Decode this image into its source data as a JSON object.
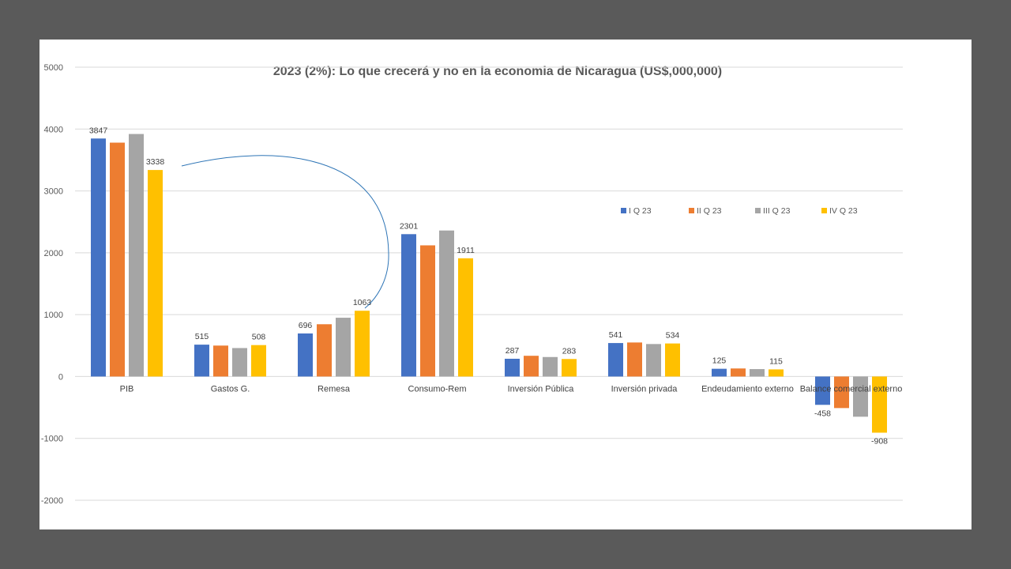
{
  "chart_data": {
    "type": "bar",
    "title": "2023 (2%): Lo que crecerá y  no en la economia de Nicaragua (US$,000,000)",
    "xlabel": "",
    "ylabel": "",
    "ylim": [
      -2000,
      5000
    ],
    "yticks": [
      5000,
      4000,
      3000,
      2000,
      1000,
      0,
      -1000,
      -2000
    ],
    "grid": true,
    "legend_position": "right",
    "categories": [
      "PIB",
      "Gastos G.",
      "Remesa",
      "Consumo-Rem",
      "Inversión Pública",
      "Inversión privada",
      "Endeudamiento externo",
      "Balance comercial externo"
    ],
    "series": [
      {
        "name": "I Q 23",
        "color": "#4472C4",
        "values": [
          3847,
          515,
          696,
          2301,
          287,
          541,
          125,
          -458
        ]
      },
      {
        "name": "II Q 23",
        "color": "#ED7D31",
        "values": [
          3780,
          500,
          845,
          2120,
          335,
          550,
          130,
          -510
        ]
      },
      {
        "name": "III Q 23",
        "color": "#A5A5A5",
        "values": [
          3920,
          460,
          950,
          2360,
          315,
          525,
          120,
          -650
        ]
      },
      {
        "name": "IV Q 23",
        "color": "#FFC000",
        "values": [
          3338,
          508,
          1063,
          1911,
          283,
          534,
          115,
          -908
        ]
      }
    ],
    "data_labels": [
      {
        "series": 0,
        "category": 0,
        "text": "3847"
      },
      {
        "series": 3,
        "category": 0,
        "text": "3338"
      },
      {
        "series": 0,
        "category": 1,
        "text": "515"
      },
      {
        "series": 3,
        "category": 1,
        "text": "508"
      },
      {
        "series": 0,
        "category": 2,
        "text": "696"
      },
      {
        "series": 3,
        "category": 2,
        "text": "1063"
      },
      {
        "series": 0,
        "category": 3,
        "text": "2301"
      },
      {
        "series": 3,
        "category": 3,
        "text": "1911"
      },
      {
        "series": 0,
        "category": 4,
        "text": "287"
      },
      {
        "series": 3,
        "category": 4,
        "text": "283"
      },
      {
        "series": 0,
        "category": 5,
        "text": "541"
      },
      {
        "series": 3,
        "category": 5,
        "text": "534"
      },
      {
        "series": 0,
        "category": 6,
        "text": "125"
      },
      {
        "series": 3,
        "category": 6,
        "text": "115"
      },
      {
        "series": 0,
        "category": 7,
        "text": "-458"
      },
      {
        "series": 3,
        "category": 7,
        "text": "-908"
      }
    ],
    "annotation_curve_color": "#2E75B6"
  }
}
